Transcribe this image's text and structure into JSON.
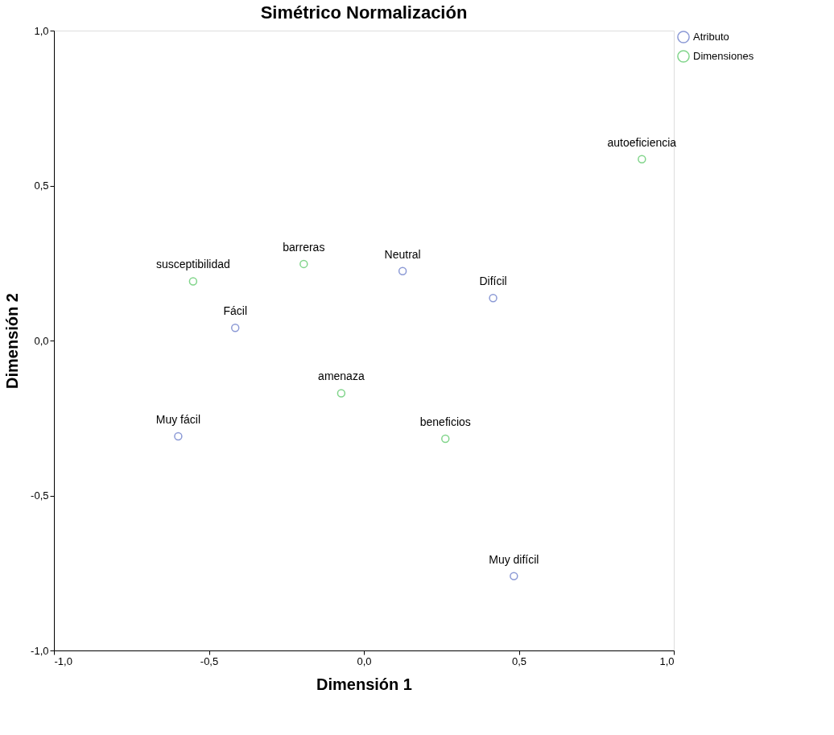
{
  "chart_data": {
    "type": "scatter",
    "title": "Simétrico Normalización",
    "xlabel": "Dimensión 1",
    "ylabel": "Dimensión 2",
    "xlim": [
      -1.0,
      1.0
    ],
    "ylim": [
      -1.0,
      1.0
    ],
    "xticks": [
      {
        "value": -1.0,
        "label": "-1,0"
      },
      {
        "value": -0.5,
        "label": "-0,5"
      },
      {
        "value": 0.0,
        "label": "0,0"
      },
      {
        "value": 0.5,
        "label": "0,5"
      },
      {
        "value": 1.0,
        "label": "1,0"
      }
    ],
    "yticks": [
      {
        "value": -1.0,
        "label": "-1,0"
      },
      {
        "value": -0.5,
        "label": "-0,5"
      },
      {
        "value": 0.0,
        "label": "0,0"
      },
      {
        "value": 0.5,
        "label": "0,5"
      },
      {
        "value": 1.0,
        "label": "1,0"
      }
    ],
    "series": [
      {
        "name": "Atributo",
        "color": "#5b6fc4",
        "x": [
          0.125,
          0.417,
          -0.415,
          -0.599,
          0.484
        ],
        "values": [
          0.224,
          0.137,
          0.041,
          -0.309,
          -0.76
        ]
      },
      {
        "name": "Dimensiones",
        "color": "#4cc35a",
        "x": [
          0.897,
          -0.194,
          -0.551,
          -0.073,
          0.263
        ],
        "values": [
          0.585,
          0.247,
          0.191,
          -0.17,
          -0.317
        ]
      }
    ],
    "annotations": [
      {
        "text": "Neutral",
        "x": 0.125,
        "y": 0.224
      },
      {
        "text": "Difícil",
        "x": 0.417,
        "y": 0.137
      },
      {
        "text": "Fácil",
        "x": -0.415,
        "y": 0.041
      },
      {
        "text": "Muy fácil",
        "x": -0.599,
        "y": -0.309
      },
      {
        "text": "Muy difícil",
        "x": 0.484,
        "y": -0.76
      },
      {
        "text": "autoeficiencia",
        "x": 0.897,
        "y": 0.585
      },
      {
        "text": "barreras",
        "x": -0.194,
        "y": 0.247
      },
      {
        "text": "susceptibilidad",
        "x": -0.551,
        "y": 0.191
      },
      {
        "text": "amenaza",
        "x": -0.073,
        "y": -0.17
      },
      {
        "text": "beneficios",
        "x": 0.263,
        "y": -0.317
      }
    ],
    "marker": "circle",
    "grid": false,
    "legend": "top right"
  }
}
